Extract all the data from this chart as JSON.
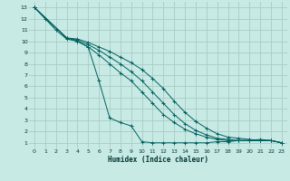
{
  "xlabel": "Humidex (Indice chaleur)",
  "bg_color": "#c8eae4",
  "grid_color": "#aaccc6",
  "line_color": "#006060",
  "xlim": [
    -0.5,
    23.5
  ],
  "ylim": [
    0.5,
    13.5
  ],
  "xticks": [
    0,
    1,
    2,
    3,
    4,
    5,
    6,
    7,
    8,
    9,
    10,
    11,
    12,
    13,
    14,
    15,
    16,
    17,
    18,
    19,
    20,
    21,
    22,
    23
  ],
  "yticks": [
    1,
    2,
    3,
    4,
    5,
    6,
    7,
    8,
    9,
    10,
    11,
    12,
    13
  ],
  "lines": [
    {
      "x": [
        0,
        1,
        2,
        3,
        4,
        5,
        6,
        7,
        8,
        9,
        10,
        11,
        12,
        13,
        14,
        15,
        16,
        17,
        18,
        19,
        20,
        21,
        22,
        23
      ],
      "y": [
        13,
        12,
        11,
        10.2,
        10.0,
        9.5,
        6.5,
        3.2,
        2.8,
        2.5,
        1.1,
        1.0,
        1.0,
        1.0,
        1.0,
        1.0,
        1.0,
        1.1,
        1.1,
        1.2,
        1.2,
        1.3,
        1.2,
        1.0
      ]
    },
    {
      "x": [
        0,
        3,
        4,
        5,
        6,
        7,
        8,
        9,
        10,
        11,
        12,
        13,
        14,
        15,
        16,
        17,
        18,
        19,
        20,
        21,
        22,
        23
      ],
      "y": [
        13,
        10.3,
        10.0,
        9.5,
        8.8,
        8.0,
        7.2,
        6.5,
        5.5,
        4.5,
        3.5,
        2.8,
        2.2,
        1.8,
        1.5,
        1.3,
        1.2,
        1.2,
        1.2,
        1.2,
        1.2,
        1.0
      ]
    },
    {
      "x": [
        0,
        3,
        4,
        5,
        6,
        7,
        8,
        9,
        10,
        11,
        12,
        13,
        14,
        15,
        16,
        17,
        18,
        19,
        20,
        21,
        22,
        23
      ],
      "y": [
        13,
        10.3,
        10.1,
        9.7,
        9.2,
        8.6,
        8.0,
        7.3,
        6.5,
        5.5,
        4.5,
        3.5,
        2.7,
        2.1,
        1.7,
        1.4,
        1.3,
        1.2,
        1.2,
        1.2,
        1.2,
        1.0
      ]
    },
    {
      "x": [
        0,
        3,
        4,
        5,
        6,
        7,
        8,
        9,
        10,
        11,
        12,
        13,
        14,
        15,
        16,
        17,
        18,
        19,
        20,
        21,
        22,
        23
      ],
      "y": [
        13,
        10.3,
        10.2,
        9.9,
        9.5,
        9.1,
        8.6,
        8.1,
        7.5,
        6.7,
        5.8,
        4.7,
        3.7,
        2.9,
        2.3,
        1.8,
        1.5,
        1.4,
        1.3,
        1.2,
        1.2,
        1.0
      ]
    }
  ]
}
